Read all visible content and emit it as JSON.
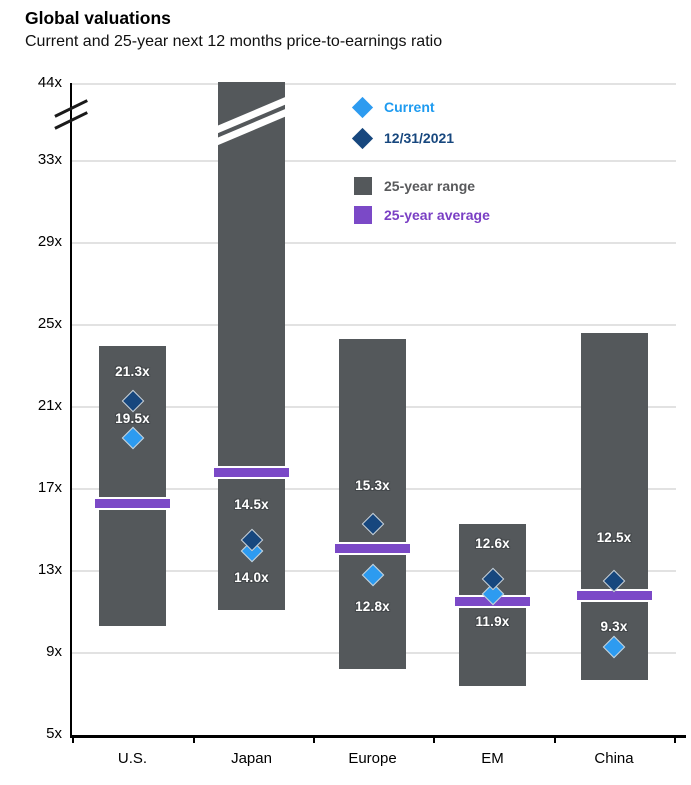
{
  "header": {
    "title": "Global valuations",
    "subtitle": "Current and 25-year next 12 months price-to-earnings ratio"
  },
  "chart_data": {
    "type": "range-bar",
    "title": "Global valuations",
    "subtitle": "Current and 25-year next 12 months price-to-earnings ratio",
    "unit": "next 12 months P/E multiple (x)",
    "categories": [
      "U.S.",
      "Japan",
      "Europe",
      "EM",
      "China"
    ],
    "y_axis": {
      "tick_labels": [
        "44x",
        "33x",
        "29x",
        "25x",
        "21x",
        "17x",
        "13x",
        "9x",
        "5x"
      ],
      "tick_values": [
        44,
        33,
        29,
        25,
        21,
        17,
        13,
        9,
        5
      ],
      "min": 5,
      "max": 44,
      "axis_break_between": [
        33,
        44
      ],
      "grid": true
    },
    "series": {
      "current": {
        "name": "Current",
        "marker": "diamond",
        "color": "#2D9BF0",
        "values": [
          19.5,
          14.0,
          12.8,
          11.9,
          9.3
        ],
        "labels": [
          "19.5x",
          "14.0x",
          "12.8x",
          "11.9x",
          "9.3x"
        ]
      },
      "dec_31_2021": {
        "name": "12/31/2021",
        "marker": "diamond",
        "color": "#17477E",
        "values": [
          21.3,
          14.5,
          15.3,
          12.6,
          12.5
        ],
        "labels": [
          "21.3x",
          "14.5x",
          "15.3x",
          "12.6x",
          "12.5x"
        ]
      },
      "range": {
        "name": "25-year range",
        "color": "#54585B",
        "low": [
          10.3,
          11.1,
          8.2,
          7.4,
          7.7
        ],
        "high": [
          24.0,
          44.0,
          24.3,
          15.3,
          24.6
        ],
        "high_clipped_by_axis_break": [
          false,
          true,
          false,
          false,
          false
        ]
      },
      "average": {
        "name": "25-year average",
        "color": "#7B49C7",
        "values": [
          16.3,
          17.8,
          14.1,
          11.5,
          11.8
        ]
      }
    },
    "legend": [
      {
        "label": "Current",
        "marker": "diamond",
        "color": "#2D9BF0",
        "text_color": "#1E9BF0"
      },
      {
        "label": "12/31/2021",
        "marker": "diamond",
        "color": "#17477E",
        "text_color": "#17477E"
      },
      {
        "label": "25-year range",
        "marker": "square",
        "color": "#54585B",
        "text_color": "#58595B"
      },
      {
        "label": "25-year average",
        "marker": "square",
        "color": "#7B49C7",
        "text_color": "#7A3FC4"
      }
    ]
  }
}
